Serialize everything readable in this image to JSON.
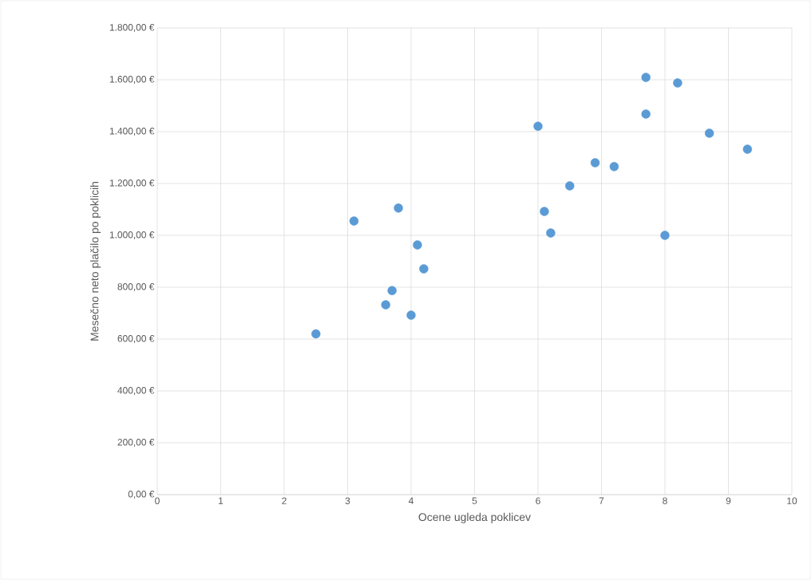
{
  "chart_data": {
    "type": "scatter",
    "xlabel": "Ocene ugleda poklicev",
    "ylabel": "Mesečno neto plačilo po poklicih",
    "x": [
      2.5,
      3.1,
      3.6,
      3.7,
      3.8,
      4.0,
      4.1,
      4.2,
      6.0,
      6.1,
      6.2,
      6.5,
      6.9,
      7.2,
      7.7,
      7.7,
      8.0,
      8.2,
      8.7,
      9.3
    ],
    "values": [
      620,
      1055,
      732,
      787,
      1105,
      692,
      963,
      871,
      1421,
      1092,
      1009,
      1191,
      1280,
      1265,
      1609,
      1468,
      1000,
      1588,
      1394,
      1332
    ],
    "color": "#5b9bd5",
    "marker": "circle",
    "grid": true,
    "xlim": [
      0,
      10
    ],
    "xticks": [
      0,
      1,
      2,
      3,
      4,
      5,
      6,
      7,
      8,
      9,
      10
    ],
    "ylim": [
      0,
      1800
    ],
    "yticks": [
      {
        "value": 0,
        "label": "0,00 €"
      },
      {
        "value": 200,
        "label": "200,00 €"
      },
      {
        "value": 400,
        "label": "400,00 €"
      },
      {
        "value": 600,
        "label": "600,00 €"
      },
      {
        "value": 800,
        "label": "800,00 €"
      },
      {
        "value": 1000,
        "label": "1.000,00 €"
      },
      {
        "value": 1200,
        "label": "1.200,00 €"
      },
      {
        "value": 1400,
        "label": "1.400,00 €"
      },
      {
        "value": 1600,
        "label": "1.600,00 €"
      },
      {
        "value": 1800,
        "label": "1.800,00 €"
      }
    ]
  }
}
